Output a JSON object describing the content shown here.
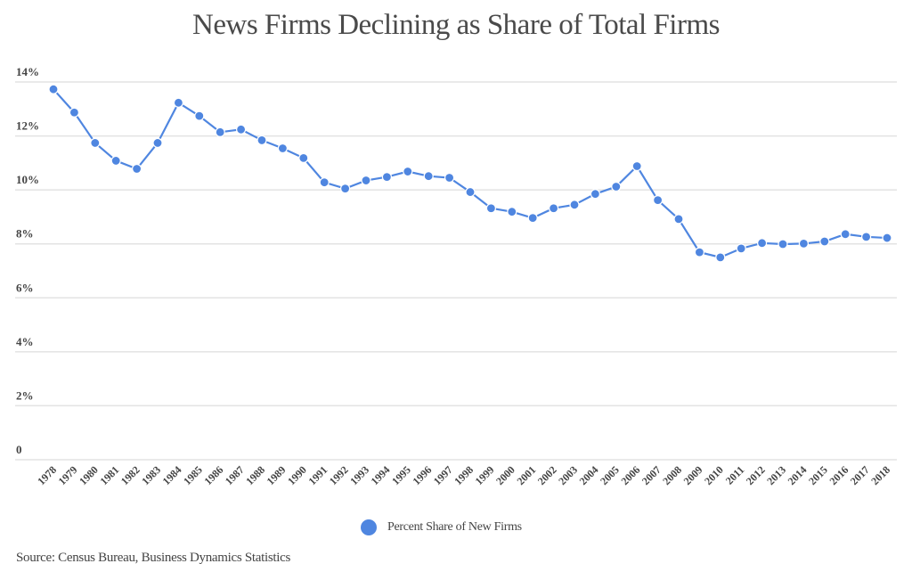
{
  "chart_data": {
    "type": "line",
    "title": "News Firms Declining as Share of Total Firms",
    "xlabel": "",
    "ylabel": "",
    "ylim": [
      0,
      14
    ],
    "y_ticks": [
      0,
      2,
      4,
      6,
      8,
      10,
      12,
      14
    ],
    "y_tick_labels": [
      "0",
      "2%",
      "4%",
      "6%",
      "8%",
      "10%",
      "12%",
      "14%"
    ],
    "grid": true,
    "legend_position": "bottom-center",
    "categories": [
      "1978",
      "1979",
      "1980",
      "1981",
      "1982",
      "1983",
      "1984",
      "1985",
      "1986",
      "1987",
      "1988",
      "1989",
      "1990",
      "1991",
      "1992",
      "1993",
      "1994",
      "1995",
      "1996",
      "1997",
      "1998",
      "1999",
      "2000",
      "2001",
      "2002",
      "2003",
      "2004",
      "2005",
      "2006",
      "2007",
      "2008",
      "2009",
      "2010",
      "2011",
      "2012",
      "2013",
      "2014",
      "2015",
      "2016",
      "2017",
      "2018"
    ],
    "series": [
      {
        "name": "Percent Share of New Firms",
        "color": "#4f86e0",
        "values": [
          13.73,
          12.87,
          11.74,
          11.08,
          10.78,
          11.74,
          13.23,
          12.74,
          12.14,
          12.24,
          11.84,
          11.54,
          11.18,
          10.28,
          10.05,
          10.35,
          10.48,
          10.68,
          10.51,
          10.45,
          9.92,
          9.32,
          9.19,
          8.96,
          9.32,
          9.45,
          9.85,
          10.12,
          10.88,
          9.62,
          8.92,
          7.69,
          7.5,
          7.83,
          8.03,
          7.99,
          8.01,
          8.09,
          8.36,
          8.26,
          8.22
        ]
      }
    ],
    "source": "Source: Census Bureau, Business Dynamics Statistics"
  }
}
